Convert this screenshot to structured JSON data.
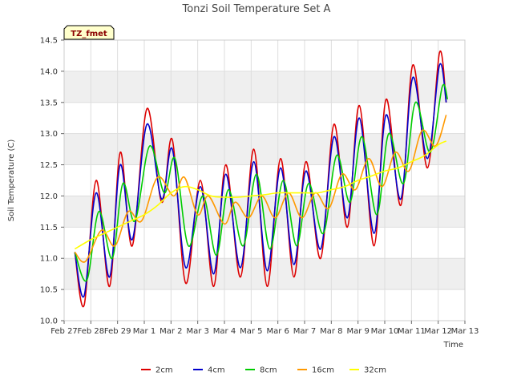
{
  "chart_data": {
    "type": "line",
    "title": "Tonzi Soil Temperature Set A",
    "xlabel": "Time",
    "ylabel": "Soil Temperature (C)",
    "ylim": [
      10.0,
      14.5
    ],
    "xlim": [
      0,
      15
    ],
    "x_ticks": [
      0,
      1,
      2,
      3,
      4,
      5,
      6,
      7,
      8,
      9,
      10,
      11,
      12,
      13,
      14,
      15
    ],
    "x_tick_labels": [
      "Feb 27",
      "Feb 28",
      "Feb 29",
      "Mar 1",
      "Mar 2",
      "Mar 3",
      "Mar 4",
      "Mar 5",
      "Mar 6",
      "Mar 7",
      "Mar 8",
      "Mar 9",
      "Mar 10",
      "Mar 11",
      "Mar 12",
      "Mar 13"
    ],
    "y_ticks": [
      10.0,
      10.5,
      11.0,
      11.5,
      12.0,
      12.5,
      13.0,
      13.5,
      14.0,
      14.5
    ],
    "y_tick_labels": [
      "10.0",
      "10.5",
      "11.0",
      "11.5",
      "12.0",
      "12.5",
      "13.0",
      "13.5",
      "14.0",
      "14.5"
    ],
    "grid": true,
    "banded_background": true,
    "legend_position": "bottom-center",
    "annotation": "TZ_fmet",
    "annotation_colors": {
      "background": "#ffffcc",
      "text": "#8b0000",
      "border": "#000000"
    },
    "series": [
      {
        "name": "2cm",
        "color": "#dd0000",
        "x": [
          0.4,
          0.75,
          1.2,
          1.7,
          2.1,
          2.55,
          3.1,
          3.65,
          4.05,
          4.55,
          5.1,
          5.6,
          6.05,
          6.6,
          7.1,
          7.6,
          8.1,
          8.6,
          9.05,
          9.6,
          10.1,
          10.6,
          11.05,
          11.6,
          12.05,
          12.6,
          13.05,
          13.6,
          14.05,
          14.3
        ],
        "y": [
          11.1,
          10.25,
          12.25,
          10.55,
          12.7,
          11.2,
          13.4,
          11.9,
          12.9,
          10.6,
          12.25,
          10.55,
          12.5,
          10.7,
          12.75,
          10.55,
          12.6,
          10.7,
          12.55,
          11.0,
          13.15,
          11.5,
          13.45,
          11.2,
          13.55,
          11.85,
          14.1,
          12.45,
          14.3,
          13.5
        ]
      },
      {
        "name": "4cm",
        "color": "#0000cc",
        "x": [
          0.4,
          0.75,
          1.2,
          1.7,
          2.1,
          2.55,
          3.1,
          3.65,
          4.05,
          4.55,
          5.1,
          5.6,
          6.05,
          6.6,
          7.1,
          7.6,
          8.1,
          8.6,
          9.05,
          9.6,
          10.1,
          10.6,
          11.05,
          11.6,
          12.05,
          12.6,
          13.05,
          13.6,
          14.05,
          14.3
        ],
        "y": [
          11.1,
          10.4,
          12.05,
          10.7,
          12.5,
          11.3,
          13.15,
          11.95,
          12.75,
          10.85,
          12.15,
          10.75,
          12.35,
          10.85,
          12.55,
          10.8,
          12.45,
          10.9,
          12.4,
          11.15,
          12.95,
          11.65,
          13.25,
          11.4,
          13.3,
          11.95,
          13.9,
          12.6,
          14.1,
          13.5
        ]
      },
      {
        "name": "8cm",
        "color": "#00cc00",
        "x": [
          0.4,
          0.85,
          1.3,
          1.8,
          2.2,
          2.65,
          3.2,
          3.75,
          4.15,
          4.65,
          5.2,
          5.7,
          6.15,
          6.7,
          7.2,
          7.7,
          8.2,
          8.7,
          9.15,
          9.7,
          10.2,
          10.7,
          11.15,
          11.7,
          12.15,
          12.7,
          13.15,
          13.7,
          14.15,
          14.35
        ],
        "y": [
          11.1,
          10.65,
          11.75,
          11.0,
          12.2,
          11.6,
          12.8,
          12.05,
          12.6,
          11.2,
          12.0,
          11.05,
          12.1,
          11.2,
          12.35,
          11.15,
          12.25,
          11.2,
          12.2,
          11.4,
          12.65,
          11.9,
          12.95,
          11.7,
          13.0,
          12.2,
          13.5,
          12.7,
          13.75,
          13.55
        ]
      },
      {
        "name": "16cm",
        "color": "#ff9900",
        "x": [
          0.4,
          0.8,
          1.4,
          1.9,
          2.4,
          2.9,
          3.5,
          4.1,
          4.5,
          5.0,
          5.4,
          6.0,
          6.4,
          6.9,
          7.4,
          7.9,
          8.4,
          8.9,
          9.4,
          9.9,
          10.4,
          10.9,
          11.4,
          11.9,
          12.4,
          12.9,
          13.4,
          13.9,
          14.3
        ],
        "y": [
          11.1,
          10.95,
          11.45,
          11.2,
          11.75,
          11.6,
          12.3,
          12.0,
          12.3,
          11.7,
          12.0,
          11.55,
          11.9,
          11.65,
          12.0,
          11.65,
          12.05,
          11.65,
          12.05,
          11.8,
          12.35,
          12.1,
          12.6,
          12.15,
          12.7,
          12.4,
          13.05,
          12.8,
          13.3
        ]
      },
      {
        "name": "32cm",
        "color": "#ffff00",
        "x": [
          0.4,
          1.0,
          1.5,
          2.0,
          2.5,
          3.0,
          3.5,
          4.0,
          4.5,
          5.0,
          5.5,
          6.0,
          6.5,
          7.0,
          7.5,
          8.0,
          8.5,
          9.0,
          9.5,
          10.0,
          10.5,
          11.0,
          11.5,
          12.0,
          12.5,
          13.0,
          13.5,
          14.0,
          14.3
        ],
        "y": [
          11.15,
          11.3,
          11.4,
          11.5,
          11.6,
          11.7,
          11.85,
          12.05,
          12.15,
          12.1,
          12.0,
          11.98,
          11.98,
          12.0,
          12.02,
          12.05,
          12.05,
          12.05,
          12.05,
          12.1,
          12.15,
          12.25,
          12.32,
          12.4,
          12.45,
          12.55,
          12.65,
          12.82,
          12.88
        ]
      }
    ]
  }
}
